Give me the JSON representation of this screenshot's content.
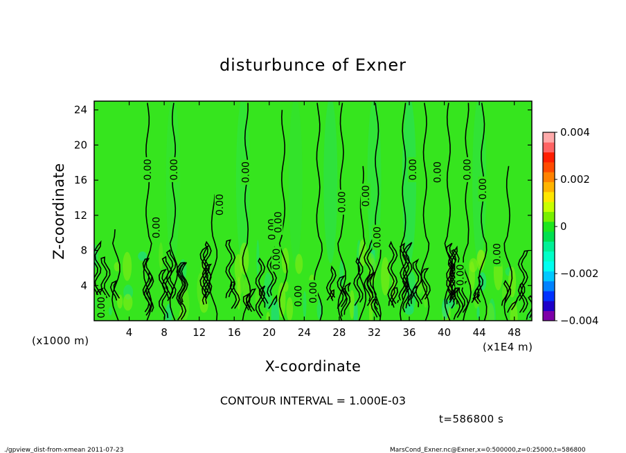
{
  "chart_data": {
    "type": "contour",
    "title": "disturbunce of Exner",
    "xlabel": "X-coordinate",
    "ylabel": "Z-coordinate",
    "x_unit_left": "(x1000 m)",
    "x_unit_right": "(x1E4 m)",
    "xlim": [
      0,
      50
    ],
    "ylim": [
      0,
      25
    ],
    "x_ticks": [
      4,
      8,
      12,
      16,
      20,
      24,
      28,
      32,
      36,
      40,
      44,
      48
    ],
    "y_ticks": [
      4,
      8,
      12,
      16,
      20,
      24
    ],
    "colorbar": {
      "min": -0.004,
      "max": 0.004,
      "tick_values": [
        0.004,
        0.002,
        0,
        -0.002,
        -0.004
      ],
      "tick_labels": [
        "0.004",
        "0.002",
        "0",
        "−0.002",
        "−0.004"
      ],
      "colors": [
        "#7e00a8",
        "#1e00c8",
        "#0032ff",
        "#0082ff",
        "#00c8ff",
        "#00fff0",
        "#00ffc8",
        "#00f096",
        "#00e050",
        "#1ee61e",
        "#78f000",
        "#c8ff00",
        "#ffe600",
        "#ffb400",
        "#ff8200",
        "#ff4b00",
        "#ff1e00",
        "#ff6464",
        "#ffaaaa"
      ]
    },
    "contour_labels": [
      {
        "text": "0.00",
        "x": 0.8,
        "z": 1.5
      },
      {
        "text": "0.00",
        "x": 6.1,
        "z": 17.2
      },
      {
        "text": "0.00",
        "x": 9.1,
        "z": 17.2
      },
      {
        "text": "0.00",
        "x": 7.1,
        "z": 10.6
      },
      {
        "text": "0.00",
        "x": 14.3,
        "z": 13.2
      },
      {
        "text": "0.00",
        "x": 17.3,
        "z": 16.9
      },
      {
        "text": "0.00",
        "x": 20.3,
        "z": 10.4
      },
      {
        "text": "0.00",
        "x": 21.0,
        "z": 11.2
      },
      {
        "text": "0.00",
        "x": 20.8,
        "z": 7.0
      },
      {
        "text": "0.00",
        "x": 23.3,
        "z": 2.8
      },
      {
        "text": "0.00",
        "x": 25.0,
        "z": 3.2
      },
      {
        "text": "0.00",
        "x": 28.3,
        "z": 13.5
      },
      {
        "text": "0.00",
        "x": 31.0,
        "z": 14.2
      },
      {
        "text": "0.00",
        "x": 32.3,
        "z": 9.5
      },
      {
        "text": "0.00",
        "x": 36.4,
        "z": 17.2
      },
      {
        "text": "0.00",
        "x": 39.2,
        "z": 16.9
      },
      {
        "text": "0.00",
        "x": 41.8,
        "z": 5.2
      },
      {
        "text": "0.00",
        "x": 42.6,
        "z": 17.2
      },
      {
        "text": "0.00",
        "x": 44.4,
        "z": 15.0
      },
      {
        "text": "0.00",
        "x": 46.0,
        "z": 7.6
      }
    ]
  },
  "contour_interval_text": "CONTOUR INTERVAL = 1.000E-03",
  "time_text": "t=586800 s",
  "footer_left": "./gpview_dist-from-xmean  2011-07-23",
  "footer_right": "MarsCond_Exner.nc@Exner,x=0:500000,z=0:25000,t=586800"
}
